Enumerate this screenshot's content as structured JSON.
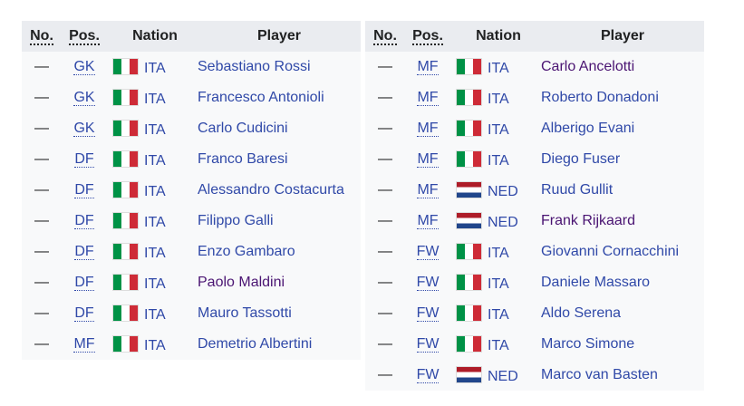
{
  "headers": {
    "no": "No.",
    "pos": "Pos.",
    "nation": "Nation",
    "player": "Player"
  },
  "left": [
    {
      "no": "—",
      "pos": "GK",
      "nation": "ITA",
      "player": "Sebastiano Rossi",
      "visited": false
    },
    {
      "no": "—",
      "pos": "GK",
      "nation": "ITA",
      "player": "Francesco Antonioli",
      "visited": false
    },
    {
      "no": "—",
      "pos": "GK",
      "nation": "ITA",
      "player": "Carlo Cudicini",
      "visited": false
    },
    {
      "no": "—",
      "pos": "DF",
      "nation": "ITA",
      "player": "Franco Baresi",
      "visited": false
    },
    {
      "no": "—",
      "pos": "DF",
      "nation": "ITA",
      "player": "Alessandro Costacurta",
      "visited": false
    },
    {
      "no": "—",
      "pos": "DF",
      "nation": "ITA",
      "player": "Filippo Galli",
      "visited": false
    },
    {
      "no": "—",
      "pos": "DF",
      "nation": "ITA",
      "player": "Enzo Gambaro",
      "visited": false
    },
    {
      "no": "—",
      "pos": "DF",
      "nation": "ITA",
      "player": "Paolo Maldini",
      "visited": true
    },
    {
      "no": "—",
      "pos": "DF",
      "nation": "ITA",
      "player": "Mauro Tassotti",
      "visited": false
    },
    {
      "no": "—",
      "pos": "MF",
      "nation": "ITA",
      "player": "Demetrio Albertini",
      "visited": false
    }
  ],
  "right": [
    {
      "no": "—",
      "pos": "MF",
      "nation": "ITA",
      "player": "Carlo Ancelotti",
      "visited": true
    },
    {
      "no": "—",
      "pos": "MF",
      "nation": "ITA",
      "player": "Roberto Donadoni",
      "visited": false
    },
    {
      "no": "—",
      "pos": "MF",
      "nation": "ITA",
      "player": "Alberigo Evani",
      "visited": false
    },
    {
      "no": "—",
      "pos": "MF",
      "nation": "ITA",
      "player": "Diego Fuser",
      "visited": false
    },
    {
      "no": "—",
      "pos": "MF",
      "nation": "NED",
      "player": "Ruud Gullit",
      "visited": false
    },
    {
      "no": "—",
      "pos": "MF",
      "nation": "NED",
      "player": "Frank Rijkaard",
      "visited": true
    },
    {
      "no": "—",
      "pos": "FW",
      "nation": "ITA",
      "player": "Giovanni Cornacchini",
      "visited": false
    },
    {
      "no": "—",
      "pos": "FW",
      "nation": "ITA",
      "player": "Daniele Massaro",
      "visited": false
    },
    {
      "no": "—",
      "pos": "FW",
      "nation": "ITA",
      "player": "Aldo Serena",
      "visited": false
    },
    {
      "no": "—",
      "pos": "FW",
      "nation": "ITA",
      "player": "Marco Simone",
      "visited": false
    },
    {
      "no": "—",
      "pos": "FW",
      "nation": "NED",
      "player": "Marco van Basten",
      "visited": false
    }
  ],
  "colors": {
    "link": "#3049a8",
    "visited": "#4a1472",
    "header_bg": "#eaecf0",
    "row_bg": "#f8f9fa"
  }
}
